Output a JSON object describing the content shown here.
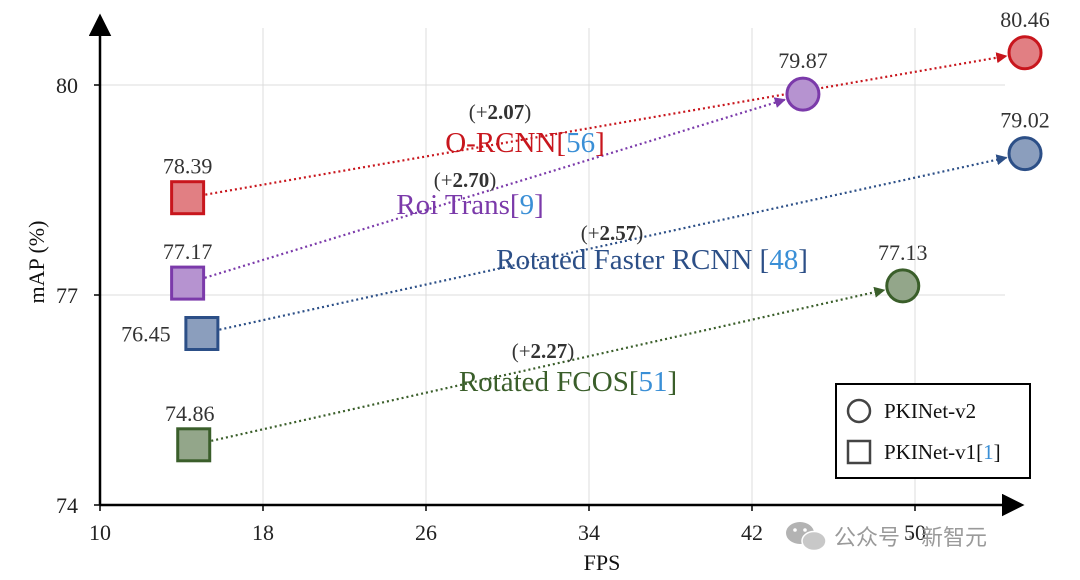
{
  "chart_data": {
    "type": "scatter",
    "xlabel": "FPS",
    "ylabel": "mAP (%)",
    "xlim": [
      10,
      56
    ],
    "ylim": [
      74,
      81.2
    ],
    "xticks": [
      10,
      18,
      26,
      34,
      42,
      50
    ],
    "yticks": [
      74,
      77,
      80
    ],
    "grid": "vertical",
    "legend": {
      "position": "bottom-right",
      "entries": [
        {
          "marker": "circle",
          "label": "PKINet-v2",
          "ref": ""
        },
        {
          "marker": "square",
          "label": "PKINet-v1[",
          "ref": "1",
          "suffix": "]"
        }
      ]
    },
    "series": [
      {
        "method": "O-RCNN",
        "ref": "56",
        "color": "#c8161d",
        "v1": {
          "x": 14.3,
          "y": 78.39,
          "label": "78.39"
        },
        "v2": {
          "x": 55.4,
          "y": 80.46,
          "label": "80.46"
        },
        "gain": "2.07"
      },
      {
        "method": "Roi Trans",
        "ref": "9",
        "color": "#7b3aaa",
        "v1": {
          "x": 14.3,
          "y": 77.17,
          "label": "77.17"
        },
        "v2": {
          "x": 44.5,
          "y": 79.87,
          "label": "79.87"
        },
        "gain": "2.70"
      },
      {
        "method": "Rotated Faster RCNN ",
        "ref": "48",
        "color": "#2c4f87",
        "v1": {
          "x": 15.0,
          "y": 76.45,
          "label": "76.45"
        },
        "v2": {
          "x": 55.4,
          "y": 79.02,
          "label": "79.02"
        },
        "gain": "2.57"
      },
      {
        "method": "Rotated FCOS",
        "ref": "51",
        "color": "#3a5e2a",
        "v1": {
          "x": 14.6,
          "y": 74.86,
          "label": "74.86"
        },
        "v2": {
          "x": 49.4,
          "y": 77.13,
          "label": "77.13"
        },
        "gain": "2.27"
      }
    ]
  },
  "watermark": "公众号 · 新智元"
}
